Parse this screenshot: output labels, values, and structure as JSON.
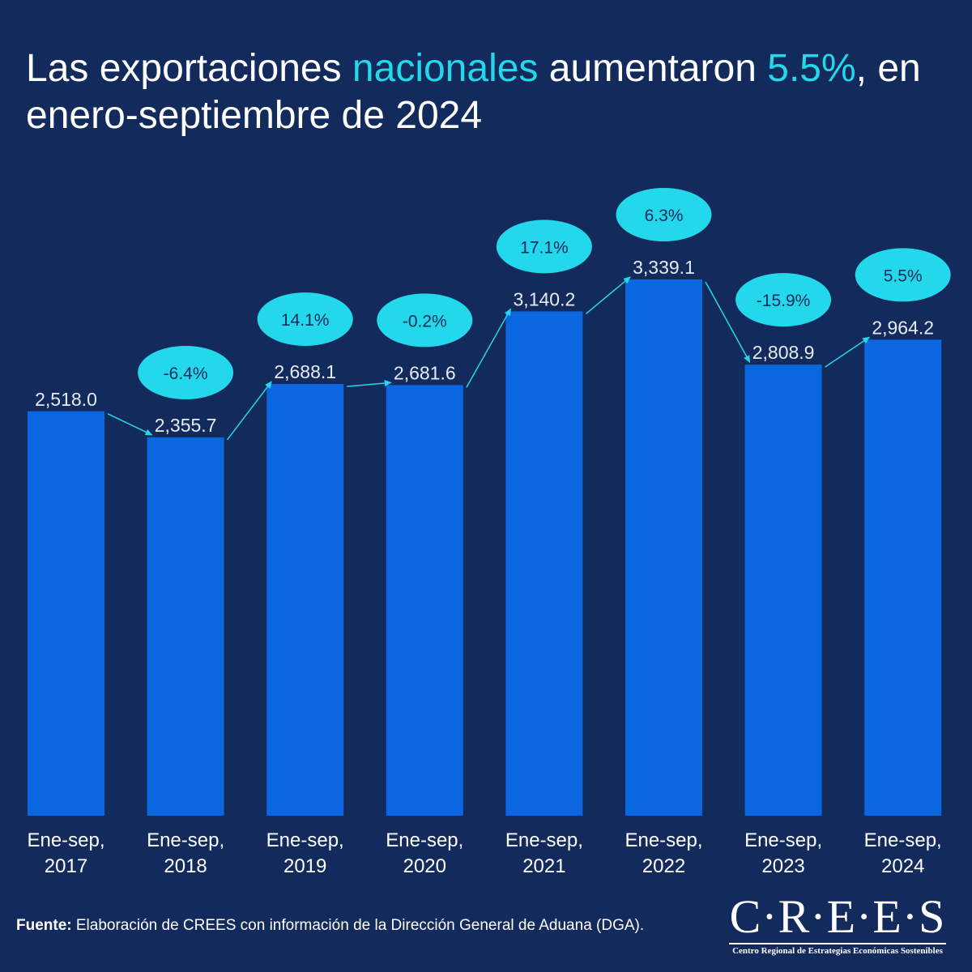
{
  "title": {
    "part1": "Las exportaciones ",
    "highlight1": "nacionales",
    "part2": " aumentaron ",
    "highlight2": "5.5%",
    "part3": ", en enero-septiembre de 2024"
  },
  "colors": {
    "background": "#132a5c",
    "bar": "#0a67e0",
    "accent": "#22d8ea",
    "bubble_text": "#132a5c",
    "text": "#ffffff"
  },
  "chart_data": {
    "type": "bar",
    "title": "Las exportaciones nacionales aumentaron 5.5%, en enero-septiembre de 2024",
    "categories": [
      [
        "Ene-sep,",
        "2017"
      ],
      [
        "Ene-sep,",
        "2018"
      ],
      [
        "Ene-sep,",
        "2019"
      ],
      [
        "Ene-sep,",
        "2020"
      ],
      [
        "Ene-sep,",
        "2021"
      ],
      [
        "Ene-sep,",
        "2022"
      ],
      [
        "Ene-sep,",
        "2023"
      ],
      [
        "Ene-sep,",
        "2024"
      ]
    ],
    "values": [
      2518.0,
      2355.7,
      2688.1,
      2681.6,
      3140.2,
      3339.1,
      2808.9,
      2964.2
    ],
    "value_labels": [
      "2,518.0",
      "2,355.7",
      "2,688.1",
      "2,681.6",
      "3,140.2",
      "3,339.1",
      "2,808.9",
      "2,964.2"
    ],
    "growth_labels": [
      "-6.4%",
      "14.1%",
      "-0.2%",
      "17.1%",
      "6.3%",
      "-15.9%",
      "5.5%"
    ],
    "ylim": [
      0,
      3339.1
    ],
    "xlabel": "",
    "ylabel": "",
    "grid": false
  },
  "source": {
    "label": "Fuente:",
    "text": " Elaboración de CREES con información de la Dirección General de Aduana (DGA)."
  },
  "logo": {
    "mark": "C·R·E·E·S",
    "subtitle": "Centro Regional de Estrategias Económicas Sostenibles"
  }
}
